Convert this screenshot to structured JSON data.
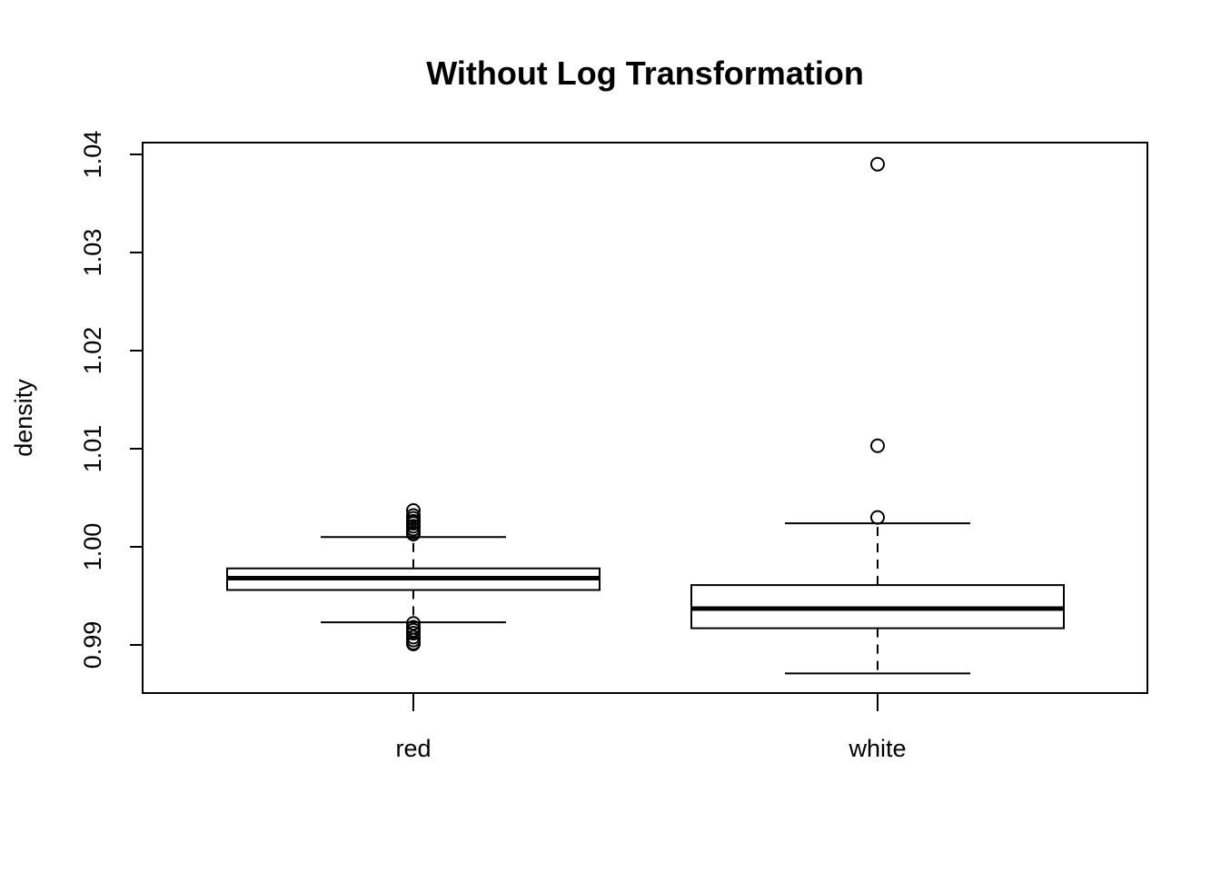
{
  "chart_data": {
    "type": "boxplot",
    "title": "Without Log Transformation",
    "xlabel": "",
    "ylabel": "density",
    "ylim": [
      0.985,
      1.041
    ],
    "yticks": [
      0.99,
      1.0,
      1.01,
      1.02,
      1.03,
      1.04
    ],
    "ytick_labels": [
      "0.99",
      "1.00",
      "1.01",
      "1.02",
      "1.03",
      "1.04"
    ],
    "categories": [
      "red",
      "white"
    ],
    "grid": false,
    "colors": {
      "box_fill": "#ffffff",
      "stroke": "#000000"
    },
    "boxes": [
      {
        "name": "red",
        "whisker_low": 0.9923,
        "q1": 0.9956,
        "median": 0.9968,
        "q3": 0.9978,
        "whisker_high": 1.001,
        "outliers": [
          1.0037,
          1.0032,
          1.0029,
          1.0026,
          1.0024,
          1.0021,
          1.0018,
          1.0015,
          1.0013,
          0.9922,
          0.9918,
          0.9915,
          0.9912,
          0.9908,
          0.9905,
          0.9902,
          0.9901
        ]
      },
      {
        "name": "white",
        "whisker_low": 0.9871,
        "q1": 0.9917,
        "median": 0.9937,
        "q3": 0.9961,
        "whisker_high": 1.0024,
        "outliers": [
          1.039,
          1.0103,
          1.003
        ]
      }
    ]
  }
}
